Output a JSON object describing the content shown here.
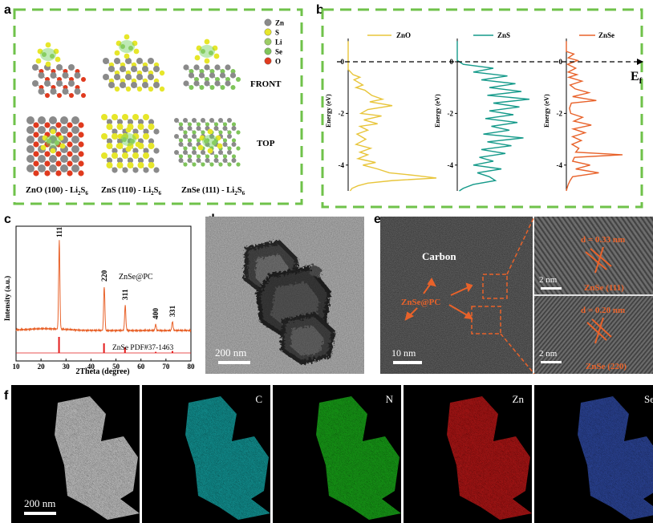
{
  "panels": {
    "a": {
      "label": "a",
      "legend": [
        "Zn",
        "S",
        "Li",
        "Se",
        "O"
      ],
      "legend_colors": [
        "#8a8a8a",
        "#e6e62a",
        "#9ccc65",
        "#7fc45a",
        "#e03a1e"
      ],
      "front_label": "FRONT",
      "top_label": "TOP",
      "captions": [
        {
          "main": "ZnO (100) - Li",
          "sub1": "2",
          "mid": "S",
          "sub2": "6"
        },
        {
          "main": "ZnS (110) - Li",
          "sub1": "2",
          "mid": "S",
          "sub2": "6"
        },
        {
          "main": "ZnSe (111) - Li",
          "sub1": "2",
          "mid": "S",
          "sub2": "6"
        }
      ]
    },
    "b": {
      "label": "b",
      "ef_main": "E",
      "ef_sub": "f",
      "axis_label": "Energy (eV)",
      "ticks": [
        "0",
        "-2",
        "-4"
      ]
    },
    "c": {
      "label": "c",
      "sample_label": "ZnSe@PC",
      "ref_label": "ZnSe PDF#37-1463",
      "xlabel": "2Theta (degree)",
      "ylabel": "Intensity (a.u.)"
    },
    "d": {
      "label": "d",
      "scale": "200 nm"
    },
    "e": {
      "label": "e",
      "carbon": "Carbon",
      "znse_pc": "ZnSe@PC",
      "scale_left": "10 nm",
      "scale_r1": "2 nm",
      "scale_r2": "2 nm",
      "d1": "d = 0.33 nm",
      "d2": "d = 0.20 nm",
      "p1": "ZnSe (111)",
      "p2": "ZnSe (220)"
    },
    "f": {
      "label": "f",
      "scale": "200 nm",
      "maps": [
        {
          "element": "",
          "color": "#d8d8d8"
        },
        {
          "element": "C",
          "color": "#19c6c6"
        },
        {
          "element": "N",
          "color": "#1fd41f"
        },
        {
          "element": "Zn",
          "color": "#e81c1c"
        },
        {
          "element": "Se",
          "color": "#3a5ccc"
        }
      ]
    }
  },
  "chart_data": [
    {
      "type": "line",
      "title": "",
      "xlabel": "",
      "ylabel": "Energy (eV)",
      "ylim": [
        -5,
        0.9
      ],
      "yticks": [
        0,
        -2,
        -4
      ],
      "series": [
        {
          "name": "ZnO",
          "color": "#e8c53a",
          "energy": [
            0.8,
            0.3,
            0.0,
            -0.3,
            -0.5,
            -0.6,
            -0.7,
            -0.9,
            -1.0,
            -1.1,
            -1.3,
            -1.45,
            -1.55,
            -1.7,
            -1.85,
            -2.0,
            -2.1,
            -2.25,
            -2.4,
            -2.5,
            -2.65,
            -2.8,
            -3.0,
            -3.2,
            -3.35,
            -3.5,
            -3.6,
            -3.75,
            -3.9,
            -4.0,
            -4.15,
            -4.3,
            -4.4,
            -4.5,
            -4.6,
            -4.7,
            -4.8,
            -4.9,
            -5.0
          ],
          "dos": [
            0,
            0,
            0,
            0,
            0.5,
            1.2,
            0.6,
            1.5,
            0.8,
            1.7,
            2.4,
            3.5,
            2.2,
            4.5,
            2.0,
            1.3,
            3.4,
            1.6,
            3.0,
            1.2,
            2.0,
            0.9,
            1.8,
            0.8,
            2.3,
            1.2,
            2.0,
            1.0,
            2.8,
            1.5,
            3.0,
            4.2,
            6.8,
            9.0,
            4.5,
            2.0,
            1.0,
            0.4,
            0.2
          ]
        },
        {
          "name": "ZnS",
          "color": "#159a8a",
          "energy": [
            0.8,
            0.3,
            0.05,
            -0.1,
            -0.25,
            -0.4,
            -0.55,
            -0.7,
            -0.85,
            -1.0,
            -1.15,
            -1.3,
            -1.45,
            -1.6,
            -1.75,
            -1.9,
            -2.05,
            -2.2,
            -2.35,
            -2.5,
            -2.65,
            -2.8,
            -2.95,
            -3.1,
            -3.25,
            -3.4,
            -3.55,
            -3.7,
            -3.85,
            -4.0,
            -4.15,
            -4.3,
            -4.45,
            -4.6,
            -4.75,
            -4.9,
            -5.0
          ],
          "dos": [
            0,
            0,
            0,
            0.3,
            1.8,
            0.8,
            2.5,
            1.2,
            2.9,
            1.6,
            3.2,
            1.5,
            3.6,
            1.8,
            3.1,
            1.6,
            2.8,
            1.4,
            3.0,
            1.7,
            2.6,
            1.3,
            3.3,
            1.5,
            2.7,
            1.2,
            2.4,
            1.1,
            1.8,
            0.8,
            2.2,
            1.0,
            1.6,
            1.9,
            0.8,
            0.3,
            0.1
          ]
        },
        {
          "name": "ZnSe",
          "color": "#e8622a",
          "energy": [
            0.8,
            0.4,
            0.3,
            0.15,
            0.05,
            -0.1,
            -0.25,
            -0.4,
            -0.5,
            -0.6,
            -0.75,
            -0.9,
            -1.05,
            -1.2,
            -1.35,
            -1.5,
            -1.6,
            -1.8,
            -2.0,
            -2.15,
            -2.3,
            -2.45,
            -2.6,
            -2.75,
            -2.9,
            -3.05,
            -3.2,
            -3.35,
            -3.5,
            -3.6,
            -3.7,
            -3.85,
            -4.0,
            -4.15,
            -4.3,
            -4.45,
            -4.6,
            -4.75,
            -4.9,
            -5.0
          ],
          "dos": [
            0,
            0,
            1.2,
            0.3,
            1.8,
            0.2,
            1.5,
            0.3,
            1.7,
            0.4,
            2.5,
            0.6,
            1.4,
            3.6,
            1.0,
            4.8,
            0.8,
            0.5,
            0.7,
            2.6,
            1.2,
            4.0,
            1.1,
            3.0,
            1.0,
            2.4,
            0.9,
            2.0,
            1.5,
            9.0,
            1.3,
            1.0,
            3.8,
            1.5,
            5.2,
            1.0,
            0.6,
            0.3,
            0.1,
            0.0
          ]
        }
      ]
    },
    {
      "type": "line",
      "title": "",
      "xlabel": "2Theta (degree)",
      "ylabel": "Intensity (a.u.)",
      "xlim": [
        10,
        80
      ],
      "xticks": [
        10,
        20,
        30,
        40,
        50,
        60,
        70,
        80
      ],
      "series": [
        {
          "name": "ZnSe@PC",
          "color": "#e8622a",
          "peaks": [
            {
              "x": 27.3,
              "height": 1.0,
              "label": "111"
            },
            {
              "x": 45.3,
              "height": 0.5,
              "label": "220"
            },
            {
              "x": 53.7,
              "height": 0.29,
              "label": "311"
            },
            {
              "x": 65.9,
              "height": 0.07,
              "label": "400"
            },
            {
              "x": 72.6,
              "height": 0.1,
              "label": "331"
            }
          ]
        },
        {
          "name": "ZnSe PDF#37-1463",
          "color": "#e31a1a",
          "sticks": [
            {
              "x": 27.2,
              "h": 1.0
            },
            {
              "x": 45.2,
              "h": 0.6
            },
            {
              "x": 53.6,
              "h": 0.35
            },
            {
              "x": 65.9,
              "h": 0.07
            },
            {
              "x": 72.6,
              "h": 0.12
            }
          ]
        }
      ]
    }
  ]
}
